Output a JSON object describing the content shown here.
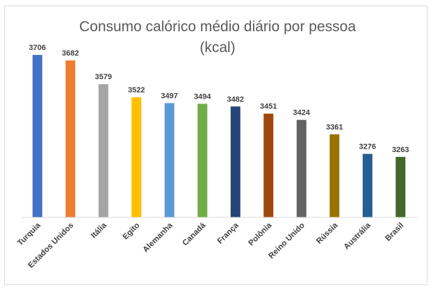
{
  "chart_data": {
    "type": "bar",
    "title": "Consumo calórico médio diário por pessoa",
    "subtitle": "(kcal)",
    "xlabel": "",
    "ylabel": "",
    "categories": [
      "Turquia",
      "Estados Unidos",
      "Itália",
      "Egito",
      "Alemanha",
      "Canadá",
      "França",
      "Polônia",
      "Reino Unido",
      "Rússia",
      "Austrália",
      "Brasil"
    ],
    "values": [
      3706,
      3682,
      3579,
      3522,
      3497,
      3494,
      3482,
      3451,
      3424,
      3361,
      3276,
      3263
    ],
    "colors": [
      "#4472c4",
      "#ed7d31",
      "#a5a5a5",
      "#ffc000",
      "#5b9bd5",
      "#70ad47",
      "#264478",
      "#9e480e",
      "#636363",
      "#997300",
      "#255e91",
      "#43682b"
    ],
    "ylim": [
      3000,
      3800
    ],
    "grid": false,
    "legend": "none"
  }
}
